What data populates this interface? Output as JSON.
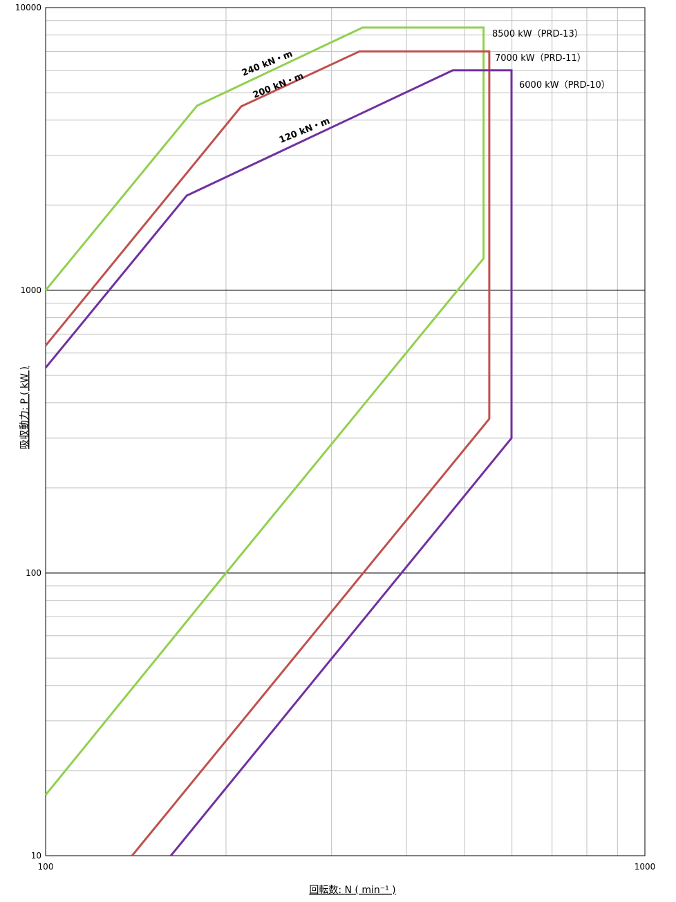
{
  "chart_data": {
    "type": "line",
    "x_label": "回転数: N ( min⁻¹ )",
    "y_label": "吸収動力: P ( kW )",
    "xlog": true,
    "ylog": true,
    "grid": true,
    "minor_grid": true,
    "xlim": [
      100,
      1000
    ],
    "xticks": [
      100,
      1000
    ],
    "ylim": [
      10,
      10000
    ],
    "yticks": [
      10,
      100,
      1000,
      10000
    ],
    "series": [
      {
        "name": "8500 kW（PRD-13）",
        "color": "#92d050",
        "x": [
          100,
          179,
          338,
          538,
          538,
          200,
          100
        ],
        "values": [
          1000,
          4500,
          8500,
          8500,
          1296,
          100,
          16.4
        ]
      },
      {
        "name": "7000 kW（PRD-11）",
        "color": "#c0504d",
        "x": [
          100,
          212,
          334,
          550,
          550,
          139.4
        ],
        "values": [
          637,
          4470,
          7000,
          7000,
          351,
          10
        ]
      },
      {
        "name": "6000 kW（PRD-10）",
        "color": "#7030a0",
        "x": [
          100,
          172,
          478,
          599,
          599,
          161.8
        ],
        "values": [
          532,
          2163,
          6000,
          6000,
          300,
          10
        ]
      }
    ],
    "annotations": [
      "240 kN・m",
      "200 kN・m",
      "120 kN・m"
    ]
  }
}
